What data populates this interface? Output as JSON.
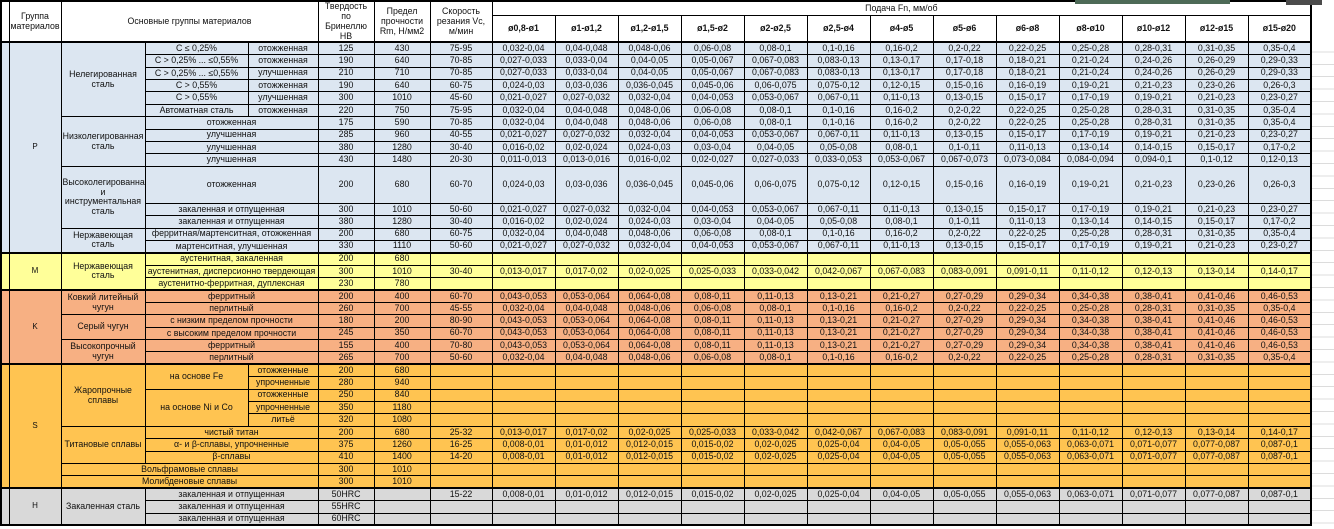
{
  "header": {
    "group": "Группа материалов",
    "main_groups": "Основные группы материалов",
    "hardness": "Твердость по Бринеллю HB",
    "strength": "Предел прочности Rm, Н/мм2",
    "speed": "Скорость резания Vc, м/мин",
    "feed": "Подача Fn, мм/об",
    "feed_columns": [
      "ø0,8-ø1",
      "ø1-ø1,2",
      "ø1,2-ø1,5",
      "ø1,5-ø2",
      "ø2-ø2,5",
      "ø2,5-ø4",
      "ø4-ø5",
      "ø5-ø6",
      "ø6-ø8",
      "ø8-ø10",
      "ø10-ø12",
      "ø12-ø15",
      "ø15-ø20"
    ]
  },
  "colors": {
    "p": "#DCE6F1",
    "m": "#FFFF99",
    "k": "#F7B083",
    "s": "#FFC451",
    "h": "#D9D9D9",
    "accent_green": "#4d6a57"
  },
  "feed_presets": {
    "A": [
      "0,032-0,04",
      "0,04-0,048",
      "0,048-0,06",
      "0,06-0,08",
      "0,08-0,1",
      "0,1-0,16",
      "0,16-0,2",
      "0,2-0,22",
      "0,22-0,25",
      "0,25-0,28",
      "0,28-0,31",
      "0,31-0,35",
      "0,35-0,4"
    ],
    "B": [
      "0,027-0,033",
      "0,033-0,04",
      "0,04-0,05",
      "0,05-0,067",
      "0,067-0,083",
      "0,083-0,13",
      "0,13-0,17",
      "0,17-0,18",
      "0,18-0,21",
      "0,21-0,24",
      "0,24-0,26",
      "0,26-0,29",
      "0,29-0,33"
    ],
    "C": [
      "0,024-0,03",
      "0,03-0,036",
      "0,036-0,045",
      "0,045-0,06",
      "0,06-0,075",
      "0,075-0,12",
      "0,12-0,15",
      "0,15-0,16",
      "0,16-0,19",
      "0,19-0,21",
      "0,21-0,23",
      "0,23-0,26",
      "0,26-0,3"
    ],
    "D": [
      "0,021-0,027",
      "0,027-0,032",
      "0,032-0,04",
      "0,04-0,053",
      "0,053-0,067",
      "0,067-0,11",
      "0,11-0,13",
      "0,13-0,15",
      "0,15-0,17",
      "0,17-0,19",
      "0,19-0,21",
      "0,21-0,23",
      "0,23-0,27"
    ],
    "E": [
      "0,016-0,02",
      "0,02-0,024",
      "0,024-0,03",
      "0,03-0,04",
      "0,04-0,05",
      "0,05-0,08",
      "0,08-0,1",
      "0,1-0,11",
      "0,11-0,13",
      "0,13-0,14",
      "0,14-0,15",
      "0,15-0,17",
      "0,17-0,2"
    ],
    "F": [
      "0,011-0,013",
      "0,013-0,016",
      "0,016-0,02",
      "0,02-0,027",
      "0,027-0,033",
      "0,033-0,053",
      "0,053-0,067",
      "0,067-0,073",
      "0,073-0,084",
      "0,084-0,094",
      "0,094-0,1",
      "0,1-0,12",
      "0,12-0,13"
    ],
    "G": [
      "0,013-0,017",
      "0,017-0,02",
      "0,02-0,025",
      "0,025-0,033",
      "0,033-0,042",
      "0,042-0,067",
      "0,067-0,083",
      "0,083-0,091",
      "0,091-0,11",
      "0,11-0,12",
      "0,12-0,13",
      "0,13-0,14",
      "0,14-0,17"
    ],
    "H": [
      "0,043-0,053",
      "0,053-0,064",
      "0,064-0,08",
      "0,08-0,11",
      "0,11-0,13",
      "0,13-0,21",
      "0,21-0,27",
      "0,27-0,29",
      "0,29-0,34",
      "0,34-0,38",
      "0,38-0,41",
      "0,41-0,46",
      "0,46-0,53"
    ],
    "I": [
      "0,008-0,01",
      "0,01-0,012",
      "0,012-0,015",
      "0,015-0,02",
      "0,02-0,025",
      "0,025-0,04",
      "0,04-0,05",
      "0,05-0,055",
      "0,055-0,063",
      "0,063-0,071",
      "0,071-0,077",
      "0,077-0,087",
      "0,087-0,1"
    ]
  },
  "rows": [
    {
      "g": "p",
      "strip": true,
      "lrs": 15,
      "letter": "P",
      "name": "Нелегированная сталь",
      "nrs": 6,
      "comp": "C ≤ 0,25%",
      "state": "отожженная",
      "hb": "125",
      "rm": "430",
      "vc": "75-95",
      "f": "A"
    },
    {
      "g": "p",
      "comp": "C > 0,25% ... ≤0,55%",
      "state": "отожженная",
      "hb": "190",
      "rm": "640",
      "vc": "70-85",
      "f": "B"
    },
    {
      "g": "p",
      "comp": "C > 0,25% ... ≤0,55%",
      "state": "улучшенная",
      "hb": "210",
      "rm": "710",
      "vc": "70-85",
      "f": "B"
    },
    {
      "g": "p",
      "comp": "C > 0,55%",
      "state": "отожженная",
      "hb": "190",
      "rm": "640",
      "vc": "60-75",
      "f": "C"
    },
    {
      "g": "p",
      "comp": "C > 0,55%",
      "state": "улучшенная",
      "hb": "300",
      "rm": "1010",
      "vc": "45-60",
      "f": "D"
    },
    {
      "g": "p",
      "comp": "Автоматная сталь",
      "state": "отожженная",
      "hb": "220",
      "rm": "750",
      "vc": "75-95",
      "f": "A"
    },
    {
      "g": "p",
      "name": "Низколегированная сталь",
      "nrs": 4,
      "comp": "отожженная",
      "ccs": 2,
      "hb": "175",
      "rm": "590",
      "vc": "70-85",
      "f": "A"
    },
    {
      "g": "p",
      "comp": "улучшенная",
      "ccs": 2,
      "hb": "285",
      "rm": "960",
      "vc": "40-55",
      "f": "D"
    },
    {
      "g": "p",
      "comp": "улучшенная",
      "ccs": 2,
      "hb": "380",
      "rm": "1280",
      "vc": "30-40",
      "f": "E"
    },
    {
      "g": "p",
      "comp": "улучшенная",
      "ccs": 2,
      "hb": "430",
      "rm": "1480",
      "vc": "20-30",
      "f": "F"
    },
    {
      "g": "p",
      "tall": true,
      "name": "Высоколегированная и инструментальная сталь",
      "nrs": 3,
      "comp": "отожженная",
      "ccs": 2,
      "hb": "200",
      "rm": "680",
      "vc": "60-70",
      "f": "C"
    },
    {
      "g": "p",
      "comp": "закаленная и отпущенная",
      "ccs": 2,
      "hb": "300",
      "rm": "1010",
      "vc": "50-60",
      "f": "D"
    },
    {
      "g": "p",
      "comp": "закаленная и отпущенная",
      "ccs": 2,
      "hb": "380",
      "rm": "1280",
      "vc": "30-40",
      "f": "E"
    },
    {
      "g": "p",
      "name": "Нержавеющая сталь",
      "nrs": 2,
      "comp": "ферритная/мартенситная, отожженная",
      "ccs": 2,
      "hb": "200",
      "rm": "680",
      "vc": "60-75",
      "f": "A"
    },
    {
      "g": "p",
      "comp": "мартенситная, улучшенная",
      "ccs": 2,
      "hb": "330",
      "rm": "1110",
      "vc": "50-60",
      "f": "D"
    },
    {
      "g": "m",
      "strip": true,
      "lrs": 3,
      "letter": "M",
      "name": "Нержавеющая сталь",
      "nrs": 3,
      "comp": "аустенитная, закаленная",
      "ccs": 2,
      "hb": "200",
      "rm": "680",
      "vc": "",
      "f": "-"
    },
    {
      "g": "m",
      "comp": "аустенитная, дисперсионно твердеющая",
      "ccs": 2,
      "hb": "300",
      "rm": "1010",
      "vc": "30-40",
      "f": "G"
    },
    {
      "g": "m",
      "comp": "аустенитно-ферритная, дуплексная",
      "ccs": 2,
      "hb": "230",
      "rm": "780",
      "vc": "",
      "f": "-"
    },
    {
      "g": "k",
      "strip": true,
      "lrs": 6,
      "letter": "K",
      "name": "Ковкий литейный чугун",
      "nrs": 2,
      "comp": "ферритный",
      "ccs": 2,
      "hb": "200",
      "rm": "400",
      "vc": "60-70",
      "f": "H"
    },
    {
      "g": "k",
      "comp": "перлитный",
      "ccs": 2,
      "hb": "260",
      "rm": "700",
      "vc": "45-55",
      "f": "A"
    },
    {
      "g": "k",
      "name": "Серый чугун",
      "nrs": 2,
      "comp": "с низким пределом прочности",
      "ccs": 2,
      "hb": "180",
      "rm": "200",
      "vc": "80-90",
      "f": "H"
    },
    {
      "g": "k",
      "comp": "с высоким пределом прочности",
      "ccs": 2,
      "hb": "245",
      "rm": "350",
      "vc": "60-70",
      "f": "H"
    },
    {
      "g": "k",
      "name": "Высокопрочный чугун",
      "nrs": 2,
      "comp": "ферритный",
      "ccs": 2,
      "hb": "155",
      "rm": "400",
      "vc": "70-80",
      "f": "H"
    },
    {
      "g": "k",
      "comp": "перлитный",
      "ccs": 2,
      "hb": "265",
      "rm": "700",
      "vc": "50-60",
      "f": "A"
    },
    {
      "g": "s",
      "strip": true,
      "lrs": 10,
      "letter": "S",
      "name": "Жаропрочные сплавы",
      "nrs": 5,
      "comp": "на основе Fe",
      "crs": 2,
      "state": "отожженные",
      "hb": "200",
      "rm": "680",
      "vc": "",
      "f": "-"
    },
    {
      "g": "s",
      "state": "упрочненные",
      "hb": "280",
      "rm": "940",
      "vc": "",
      "f": "-"
    },
    {
      "g": "s",
      "comp": "на основе Ni и Co",
      "crs": 3,
      "state": "отожженные",
      "hb": "250",
      "rm": "840",
      "vc": "",
      "f": "-"
    },
    {
      "g": "s",
      "state": "упрочненные",
      "hb": "350",
      "rm": "1180",
      "vc": "",
      "f": "-"
    },
    {
      "g": "s",
      "state": "литьё",
      "hb": "320",
      "rm": "1080",
      "vc": "",
      "f": "-"
    },
    {
      "g": "s",
      "name": "Титановые сплавы",
      "nrs": 3,
      "comp": "чистый титан",
      "ccs": 2,
      "hb": "200",
      "rm": "680",
      "vc": "25-32",
      "f": "G"
    },
    {
      "g": "s",
      "comp": "α- и β-сплавы, упрочненные",
      "ccs": 2,
      "hb": "375",
      "rm": "1260",
      "vc": "16-25",
      "f": "I"
    },
    {
      "g": "s",
      "comp": "β-сплавы",
      "ccs": 2,
      "hb": "410",
      "rm": "1400",
      "vc": "14-20",
      "f": "I"
    },
    {
      "g": "s",
      "wide": "Вольфрамовые сплавы",
      "hb": "300",
      "rm": "1010",
      "vc": "",
      "f": "-"
    },
    {
      "g": "s",
      "wide": "Молибденовые сплавы",
      "hb": "300",
      "rm": "1010",
      "vc": "",
      "f": "-"
    },
    {
      "g": "h",
      "strip": true,
      "lrs": 3,
      "letter": "H",
      "name": "Закаленная сталь",
      "nrs": 3,
      "comp": "закаленная и отпущенная",
      "ccs": 2,
      "hb": "50HRC",
      "rm": "",
      "vc": "15-22",
      "f": "I"
    },
    {
      "g": "h",
      "comp": "закаленная и отпущенная",
      "ccs": 2,
      "hb": "55HRC",
      "rm": "",
      "vc": "",
      "f": "-"
    },
    {
      "g": "h",
      "comp": "закаленная и отпущенная",
      "ccs": 2,
      "hb": "60HRC",
      "rm": "",
      "vc": "",
      "f": "-"
    }
  ]
}
